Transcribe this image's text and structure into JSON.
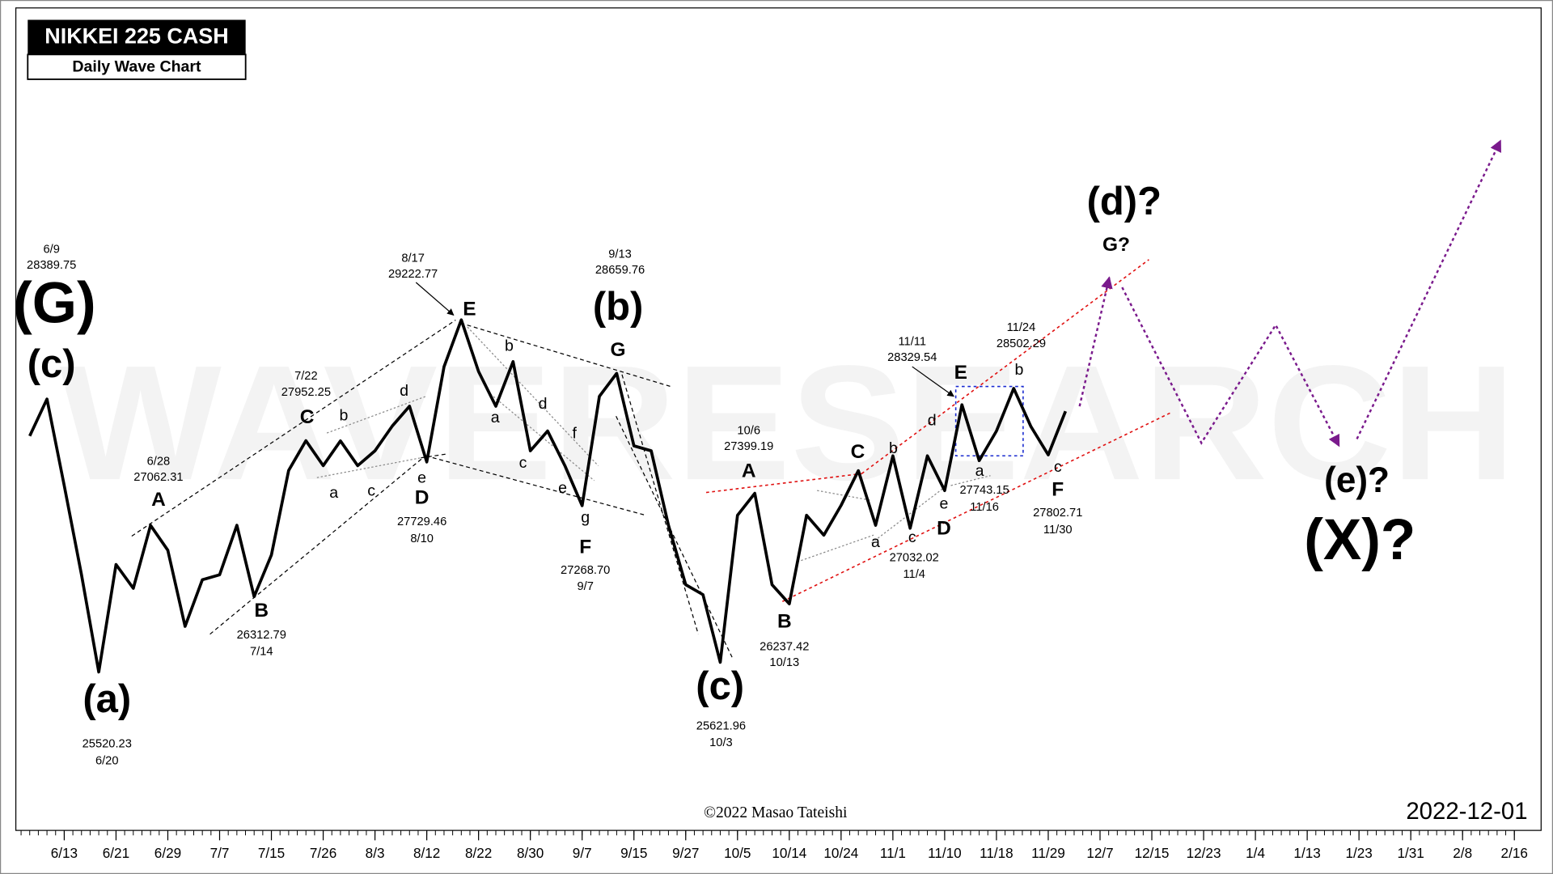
{
  "chart_data": {
    "type": "line",
    "title": "NIKKEI 225 CASH",
    "subtitle": "Daily Wave Chart",
    "watermark": "WAVERESEARCH",
    "date_stamp": "2022-12-01",
    "copyright": "©2022 Masao Tateishi",
    "categories": [
      null,
      null,
      "6/13",
      null,
      null,
      "6/21",
      null,
      null,
      "6/29",
      null,
      null,
      "7/7",
      null,
      null,
      "7/15",
      null,
      null,
      "7/26",
      null,
      null,
      "8/3",
      null,
      null,
      "8/12",
      null,
      null,
      "8/22",
      null,
      null,
      "8/30",
      null,
      null,
      "9/7",
      null,
      null,
      "9/15",
      null,
      null,
      "9/27",
      null,
      null,
      "10/5",
      null,
      null,
      "10/14",
      null,
      null,
      "10/24",
      null,
      null,
      "11/1",
      null,
      null,
      "11/10",
      null,
      null,
      "11/18",
      null,
      null,
      "11/29",
      null,
      null,
      "12/7",
      null,
      null,
      "12/15",
      null,
      null,
      "12/23",
      null,
      null,
      "1/4",
      null,
      null,
      "1/13",
      null,
      null,
      "1/23",
      null,
      null,
      "1/31",
      null,
      null,
      "2/8",
      null,
      null,
      "2/16"
    ],
    "series": [
      {
        "name": "NIKKEI 225 CASH",
        "color": "#000000",
        "values": [
          28002,
          28390,
          27480,
          26542,
          25520,
          26650,
          26400,
          27062,
          26800,
          26000,
          26490,
          26542,
          27063,
          26313,
          26750,
          27640,
          27952,
          27690,
          27950,
          27690,
          27846,
          28106,
          28315,
          27729,
          28730,
          29223,
          28680,
          28315,
          28784,
          27846,
          28054,
          27690,
          27269,
          28419,
          28660,
          27898,
          27846,
          27063,
          26438,
          26333,
          25622,
          27168,
          27399,
          26438,
          26237,
          27168,
          26959,
          27272,
          27637,
          27063,
          27793,
          27032,
          27793,
          27428,
          28330,
          27743,
          28054,
          28502,
          28100,
          27803,
          28262,
          null,
          null,
          null,
          null,
          null,
          null,
          null,
          null,
          null,
          null,
          null,
          null,
          null,
          null,
          null,
          null,
          null,
          null,
          null,
          null,
          null,
          null,
          null,
          null,
          null,
          null
        ]
      }
    ],
    "ylim": [
      24000,
      32000
    ],
    "annotations": [
      "6/9",
      "28389.75",
      "(G)",
      "(c)",
      "(a)",
      "25520.23",
      "6/20",
      "6/28",
      "27062.31",
      "A",
      "B",
      "26312.79",
      "7/14",
      "7/22",
      "27952.25",
      "C",
      "b",
      "a",
      "c",
      "d",
      "e",
      "D",
      "27729.46",
      "8/10",
      "8/17",
      "29222.77",
      "E",
      "b",
      "a",
      "d",
      "c",
      "f",
      "e",
      "g",
      "F",
      "27268.70",
      "9/7",
      "9/13",
      "28659.76",
      "(b)",
      "G",
      "(c)",
      "25621.96",
      "10/3",
      "10/6",
      "27399.19",
      "A",
      "B",
      "26237.42",
      "10/13",
      "C",
      "b",
      "a",
      "c",
      "27032.02",
      "11/4",
      "d",
      "e",
      "D",
      "11/11",
      "28329.54",
      "E",
      "a",
      "27743.15",
      "11/16",
      "11/24",
      "28502.29",
      "b",
      "c",
      "F",
      "27802.71",
      "11/30",
      "(d)?",
      "G?",
      "(e)?",
      "(X)?"
    ]
  }
}
